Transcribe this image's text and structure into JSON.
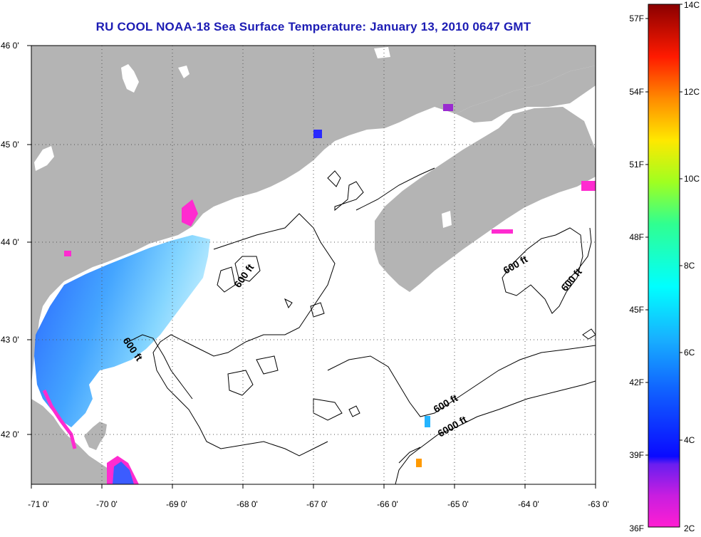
{
  "title": "RU COOL  NOAA-18  Sea Surface Temperature:  January 13, 2010 0647 GMT",
  "map": {
    "lon_labels": [
      "-71 0'",
      "-70 0'",
      "-69 0'",
      "-68 0'",
      "-67 0'",
      "-66 0'",
      "-65 0'",
      "-64 0'",
      "-63 0'"
    ],
    "lat_labels": [
      "46 0'",
      "45 0'",
      "44 0'",
      "43 0'",
      "42 0'"
    ],
    "contour_labels": [
      "600 ft",
      "600 ft",
      "600 ft",
      "600 ft",
      "600 ft",
      "6000 ft"
    ],
    "colors": {
      "land": "#b4b4b4",
      "ocean_nodata": "#ffffff",
      "grid": "#555555"
    }
  },
  "colorbar": {
    "fahrenheit_labels": [
      "57F",
      "54F",
      "51F",
      "48F",
      "45F",
      "42F",
      "39F",
      "36F"
    ],
    "celsius_labels": [
      "14C",
      "12C",
      "10C",
      "8C",
      "6C",
      "4C",
      "2C"
    ]
  }
}
